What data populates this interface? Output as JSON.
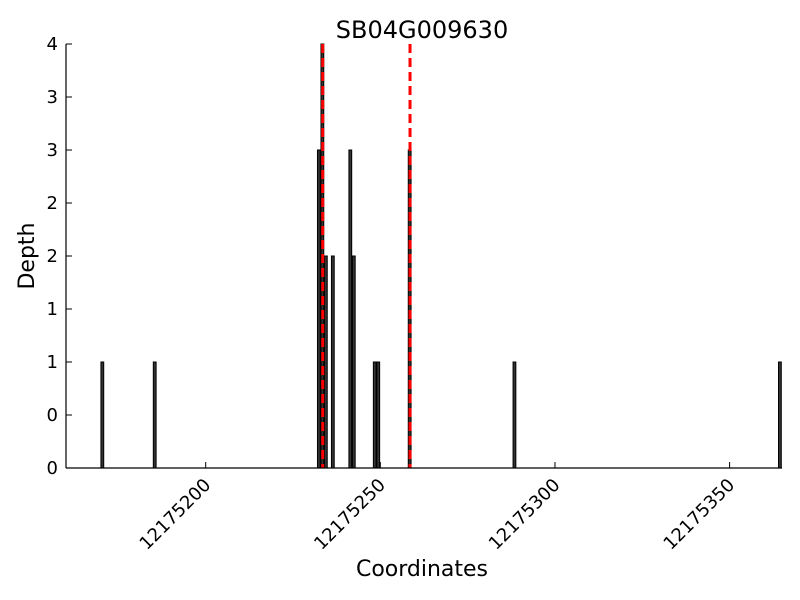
{
  "chart_data": {
    "type": "bar",
    "title": "SB04G009630",
    "xlabel": "Coordinates",
    "ylabel": "Depth",
    "xlim": [
      12175160,
      12175365
    ],
    "ylim": [
      0,
      4
    ],
    "x_ticks": [
      12175200,
      12175250,
      12175300,
      12175350
    ],
    "y_ticks": [
      0,
      0.5,
      1,
      1.5,
      2,
      2.5,
      3,
      3.5,
      4
    ],
    "y_tick_labels": [
      "0",
      "0",
      "1",
      "1",
      "2",
      "2",
      "3",
      "3",
      "4"
    ],
    "bars": [
      {
        "x": 12175170,
        "depth": 1
      },
      {
        "x": 12175185,
        "depth": 1
      },
      {
        "x": 12175232,
        "depth": 3
      },
      {
        "x": 12175233,
        "depth": 4
      },
      {
        "x": 12175234,
        "depth": 2
      },
      {
        "x": 12175236,
        "depth": 2
      },
      {
        "x": 12175241,
        "depth": 3
      },
      {
        "x": 12175242,
        "depth": 2
      },
      {
        "x": 12175248,
        "depth": 1
      },
      {
        "x": 12175249,
        "depth": 1
      },
      {
        "x": 12175258,
        "depth": 3
      },
      {
        "x": 12175288,
        "depth": 1
      },
      {
        "x": 12175364,
        "depth": 1
      }
    ],
    "bar_width": 0.8,
    "markers": [
      12175233.5,
      12175258.5
    ],
    "colors": {
      "bar_fill": "#333333",
      "bar_edge": "#000000",
      "marker": "#ff0000"
    },
    "grid": false
  }
}
